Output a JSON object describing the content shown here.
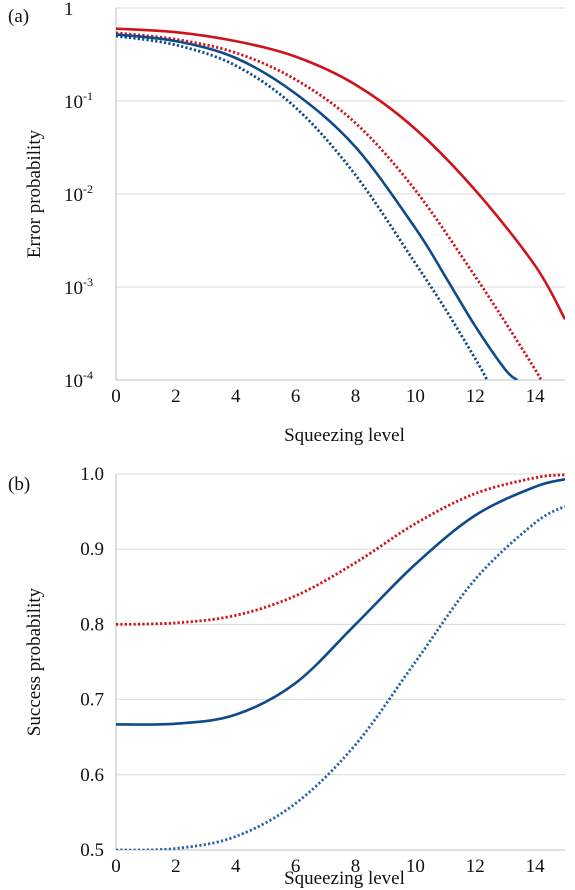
{
  "chart_data": [
    {
      "panel_label": "(a)",
      "type": "line",
      "xlabel": "Squeezing level",
      "ylabel": "Error probability",
      "xlim": [
        0,
        15
      ],
      "ylim": [
        0.0001,
        1
      ],
      "y_scale": "log",
      "x_ticks": [
        "0",
        "2",
        "4",
        "6",
        "8",
        "10",
        "12",
        "14"
      ],
      "y_ticks": [
        {
          "base": "1",
          "exp": "",
          "value": 1
        },
        {
          "base": "10",
          "exp": "-1",
          "value": 0.1
        },
        {
          "base": "10",
          "exp": "-2",
          "value": 0.01
        },
        {
          "base": "10",
          "exp": "-3",
          "value": 0.001
        },
        {
          "base": "10",
          "exp": "-4",
          "value": 0.0001
        }
      ],
      "grid": "horizontal",
      "series": [
        {
          "color": "#d0121b",
          "style": "solid",
          "x": [
            0,
            2,
            4,
            6,
            8,
            10,
            12,
            14,
            15
          ],
          "y": [
            0.6,
            0.55,
            0.44,
            0.3,
            0.15,
            0.05,
            0.011,
            0.0017,
            0.00045
          ]
        },
        {
          "color": "#d0121b",
          "style": "dotted",
          "x": [
            0,
            2,
            4,
            6,
            8,
            10,
            12,
            13,
            14,
            14.2
          ],
          "y": [
            0.54,
            0.46,
            0.33,
            0.17,
            0.058,
            0.011,
            0.0013,
            0.00042,
            0.00013,
            0.0001
          ]
        },
        {
          "color": "#0f4a8a",
          "style": "solid",
          "x": [
            0,
            2,
            4,
            6,
            8,
            10,
            11,
            12,
            13,
            13.4
          ],
          "y": [
            0.52,
            0.44,
            0.29,
            0.12,
            0.032,
            0.0043,
            0.0013,
            0.00038,
            0.00013,
            0.0001
          ]
        },
        {
          "color": "#0f4a8a",
          "style": "dotted",
          "x": [
            0,
            2,
            4,
            6,
            8,
            10,
            11,
            12,
            12.4
          ],
          "y": [
            0.5,
            0.4,
            0.24,
            0.085,
            0.016,
            0.0018,
            0.00058,
            0.00017,
            0.0001
          ]
        }
      ]
    },
    {
      "panel_label": "(b)",
      "type": "line",
      "xlabel": "Squeezing level",
      "ylabel": "Success probability",
      "xlim": [
        0,
        15
      ],
      "ylim": [
        0.5,
        1.0
      ],
      "x_ticks": [
        "0",
        "2",
        "4",
        "6",
        "8",
        "10",
        "12",
        "14"
      ],
      "y_ticks": [
        "0.5",
        "0.6",
        "0.7",
        "0.8",
        "0.9",
        "1.0"
      ],
      "grid": "horizontal",
      "series": [
        {
          "color": "#d0121b",
          "style": "dotted",
          "x": [
            0,
            2,
            4,
            6,
            8,
            10,
            12,
            14,
            15
          ],
          "y": [
            0.8,
            0.802,
            0.812,
            0.838,
            0.882,
            0.934,
            0.974,
            0.995,
            0.999
          ]
        },
        {
          "color": "#0f4a8a",
          "style": "solid",
          "x": [
            0,
            2,
            4,
            6,
            8,
            10,
            12,
            14,
            15
          ],
          "y": [
            0.667,
            0.668,
            0.68,
            0.722,
            0.8,
            0.88,
            0.945,
            0.983,
            0.993
          ]
        },
        {
          "color": "#2a64a8",
          "style": "dotted",
          "x": [
            0,
            2,
            4,
            6,
            8,
            10,
            12,
            14,
            15
          ],
          "y": [
            0.5,
            0.502,
            0.518,
            0.562,
            0.64,
            0.75,
            0.86,
            0.935,
            0.957
          ]
        }
      ]
    }
  ]
}
